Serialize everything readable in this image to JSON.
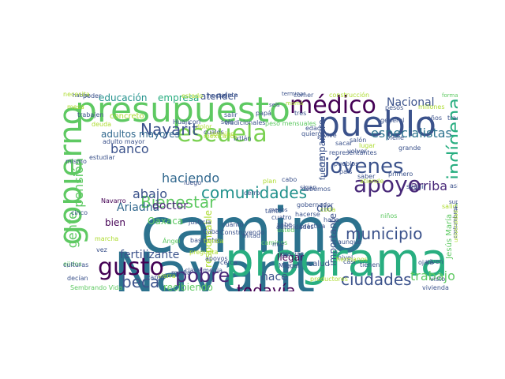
{
  "palette": {
    "dark_purple": "#440154",
    "indigo": "#3b528b",
    "teal": "#2c728e",
    "green": "#28ae80",
    "light_green": "#5ec962",
    "lime": "#addc30",
    "yellow": "#fde725"
  },
  "words": [
    {
      "text": "camino",
      "color": "#2c728e"
    },
    {
      "text": "Nayarit",
      "color": "#2c728e"
    },
    {
      "text": "programa",
      "color": "#28ae80"
    },
    {
      "text": "presupuesto",
      "color": "#5ec962"
    },
    {
      "text": "pueblo",
      "color": "#3b528b"
    },
    {
      "text": "escuela",
      "color": "#7ad151"
    },
    {
      "text": "médico",
      "color": "#440154"
    },
    {
      "text": "gobierno",
      "color": "#5ec962"
    },
    {
      "text": "gusto",
      "color": "#440154"
    },
    {
      "text": "apoyo",
      "color": "#482878"
    },
    {
      "text": "jóvenes",
      "color": "#3b528b"
    },
    {
      "text": "indígena",
      "color": "#28ae80"
    },
    {
      "text": "pobre",
      "color": "#482878"
    },
    {
      "text": "beca",
      "color": "#3b528b"
    },
    {
      "text": "municipio",
      "color": "#3b528b"
    },
    {
      "text": "ciudades",
      "color": "#3b528b"
    },
    {
      "text": "todavía",
      "color": "#440154"
    },
    {
      "text": "Bienestar",
      "color": "#5ec962"
    },
    {
      "text": "comunidades",
      "color": "#21918c"
    },
    {
      "text": "Nayarit",
      "color": "#3b528b"
    },
    {
      "text": "gente",
      "color": "#5ec962"
    },
    {
      "text": "pensión",
      "color": "#5ec962"
    },
    {
      "text": "especialistas",
      "color": "#2c728e"
    },
    {
      "text": "Nacional",
      "color": "#3b528b"
    },
    {
      "text": "arriba",
      "color": "#482878"
    },
    {
      "text": "trabajo",
      "color": "#5ec962"
    },
    {
      "text": "haciendo",
      "color": "#31688e"
    },
    {
      "text": "abajo",
      "color": "#3b528b"
    },
    {
      "text": "banco",
      "color": "#3b528b"
    },
    {
      "text": "Ariadna",
      "color": "#31688e"
    },
    {
      "text": "doctor",
      "color": "#482878"
    },
    {
      "text": "fertilizante",
      "color": "#3b528b"
    },
    {
      "text": "bien",
      "color": "#440154"
    },
    {
      "text": "dio",
      "color": "#3b528b"
    },
    {
      "text": "compañero",
      "color": "#3b528b"
    },
    {
      "text": "educación",
      "color": "#21918c"
    },
    {
      "text": "adultos mayores",
      "color": "#31688e"
    },
    {
      "text": "empresa",
      "color": "#28ae80"
    },
    {
      "text": "atender",
      "color": "#3b528b"
    },
    {
      "text": "importante",
      "color": "#3b528b"
    },
    {
      "text": "fuerte",
      "color": "#3b528b"
    },
    {
      "text": "Oaxaca",
      "color": "#5ec962"
    },
    {
      "text": "responsable",
      "color": "#addc30"
    },
    {
      "text": "recibiendo",
      "color": "#5ec962"
    },
    {
      "text": "Jesús María",
      "color": "#5ec962"
    },
    {
      "text": "salud",
      "color": "#3b528b"
    },
    {
      "text": "concreto",
      "color": "#addc30"
    },
    {
      "text": "adulto mayor",
      "color": "#3b528b"
    },
    {
      "text": "Navarro",
      "color": "#440154"
    },
    {
      "text": "justicia",
      "color": "#3b528b"
    },
    {
      "text": "cuánto",
      "color": "#3b528b"
    },
    {
      "text": "Construyendo",
      "color": "#3b528b"
    },
    {
      "text": "mitad",
      "color": "#3b528b"
    },
    {
      "text": "llegar",
      "color": "#440154"
    },
    {
      "text": "hace",
      "color": "#3b528b"
    },
    {
      "text": "clase media",
      "color": "#3b528b"
    },
    {
      "text": "sierra",
      "color": "#addc30"
    },
    {
      "text": "cargo",
      "color": "#3b528b"
    },
    {
      "text": "Sembrando Vida",
      "color": "#5ec962"
    },
    {
      "text": "vivienda",
      "color": "#3b528b"
    },
    {
      "text": "primero",
      "color": "#3b528b"
    },
    {
      "text": "seguir",
      "color": "#3b528b"
    },
    {
      "text": "grande",
      "color": "#3b528b"
    },
    {
      "text": "Huajicori",
      "color": "#3b528b"
    },
    {
      "text": "tradicionales",
      "color": "#3b528b"
    },
    {
      "text": "cinco",
      "color": "#3b528b"
    },
    {
      "text": "vez",
      "color": "#3b528b"
    },
    {
      "text": "ejidos",
      "color": "#5ec962"
    },
    {
      "text": "hablar",
      "color": "#3b528b"
    },
    {
      "text": "trabajen",
      "color": "#3b528b"
    },
    {
      "text": "millones",
      "color": "#addc30"
    },
    {
      "text": "tradiciones",
      "color": "#3b528b"
    },
    {
      "text": "formando",
      "color": "#5ec962"
    },
    {
      "text": "casi",
      "color": "#3b528b"
    },
    {
      "text": "nivel",
      "color": "#3b528b"
    },
    {
      "text": "aunque",
      "color": "#3b528b"
    },
    {
      "text": "Miguel",
      "color": "#3b528b"
    },
    {
      "text": "llega",
      "color": "#3b528b"
    },
    {
      "text": "años",
      "color": "#3b528b"
    },
    {
      "text": "seis",
      "color": "#3b528b"
    },
    {
      "text": "salida",
      "color": "#addc30"
    },
    {
      "text": "Ángel",
      "color": "#5ec962"
    },
    {
      "text": "costumbres",
      "color": "#3b528b"
    },
    {
      "text": "peso mensuales",
      "color": "#5ec962"
    },
    {
      "text": "dolor",
      "color": "#addc30"
    },
    {
      "text": "cuales",
      "color": "#3b528b"
    },
    {
      "text": "luego",
      "color": "#3b528b"
    },
    {
      "text": "mismo",
      "color": "#3b528b"
    },
    {
      "text": "sigan",
      "color": "#3b528b"
    },
    {
      "text": "haga",
      "color": "#3b528b"
    },
    {
      "text": "viene",
      "color": "#3b528b"
    },
    {
      "text": "saber",
      "color": "#3b528b"
    },
    {
      "text": "cerro",
      "color": "#3b528b"
    },
    {
      "text": "usted",
      "color": "#5ec962"
    },
    {
      "text": "tanto",
      "color": "#3b528b"
    },
    {
      "text": "menos",
      "color": "#3b528b"
    },
    {
      "text": "cabo",
      "color": "#3b528b"
    },
    {
      "text": "estudiar",
      "color": "#3b528b"
    },
    {
      "text": "deuda",
      "color": "#addc30"
    },
    {
      "text": "general",
      "color": "#3b528b"
    },
    {
      "text": "pesos",
      "color": "#3b528b"
    },
    {
      "text": "salón",
      "color": "#3b528b"
    },
    {
      "text": "coda",
      "color": "#addc30"
    },
    {
      "text": "vive",
      "color": "#3b528b"
    },
    {
      "text": "representantes",
      "color": "#3b528b"
    },
    {
      "text": "volver",
      "color": "#3b528b"
    },
    {
      "text": "sacar",
      "color": "#3b528b"
    },
    {
      "text": "hermanos",
      "color": "#addc30"
    },
    {
      "text": "comer",
      "color": "#3b528b"
    },
    {
      "text": "término",
      "color": "#addc30"
    },
    {
      "text": "cuenta",
      "color": "#3b528b"
    },
    {
      "text": "terminar",
      "color": "#3b528b"
    },
    {
      "text": "construcción",
      "color": "#addc30"
    },
    {
      "text": "edad",
      "color": "#3b528b"
    },
    {
      "text": "mamá",
      "color": "#addc30"
    },
    {
      "text": "quiero",
      "color": "#3b528b"
    },
    {
      "text": "tres",
      "color": "#3b528b"
    },
    {
      "text": "visto",
      "color": "#3b528b"
    },
    {
      "text": "universidad",
      "color": "#addc30"
    },
    {
      "text": "buscar",
      "color": "#3b528b"
    },
    {
      "text": "mayores",
      "color": "#5ec962"
    },
    {
      "text": "superior",
      "color": "#3b528b"
    },
    {
      "text": "asi",
      "color": "#3b528b"
    },
    {
      "text": "tienen",
      "color": "#3b528b"
    },
    {
      "text": "poder",
      "color": "#3b528b"
    },
    {
      "text": "estado",
      "color": "#addc30"
    },
    {
      "text": "hecho",
      "color": "#3b528b"
    },
    {
      "text": "bastante",
      "color": "#3b528b"
    },
    {
      "text": "Cuba",
      "color": "#3b528b"
    },
    {
      "text": "mesa",
      "color": "#addc30"
    },
    {
      "text": "marcha",
      "color": "#addc30"
    },
    {
      "text": "Ixtlán",
      "color": "#3b528b"
    },
    {
      "text": "mexicanos",
      "color": "#addc30"
    },
    {
      "text": "culturas",
      "color": "#3b528b"
    },
    {
      "text": "media",
      "color": "#3b528b"
    },
    {
      "text": "apoyos",
      "color": "#3b528b"
    },
    {
      "text": "caminos",
      "color": "#5ec962"
    },
    {
      "text": "tienda",
      "color": "#addc30"
    },
    {
      "text": "cerca",
      "color": "#3b528b"
    },
    {
      "text": "pregunta",
      "color": "#addc30"
    },
    {
      "text": "cuatro",
      "color": "#3b528b"
    },
    {
      "text": "gracias",
      "color": "#3b528b"
    },
    {
      "text": "lugar",
      "color": "#addc30"
    },
    {
      "text": "niños",
      "color": "#5ec962"
    },
    {
      "text": "decían",
      "color": "#3b528b"
    },
    {
      "text": "autoridades",
      "color": "#3b528b"
    },
    {
      "text": "práctica",
      "color": "#3b528b"
    },
    {
      "text": "gobernador",
      "color": "#3b528b"
    },
    {
      "text": "debemos",
      "color": "#3b528b"
    },
    {
      "text": "productores",
      "color": "#addc30"
    },
    {
      "text": "ojalá",
      "color": "#3b528b"
    },
    {
      "text": "solo",
      "color": "#3b528b"
    },
    {
      "text": "mar",
      "color": "#3b528b"
    },
    {
      "text": "plan",
      "color": "#addc30"
    },
    {
      "text": "papá",
      "color": "#3b528b"
    },
    {
      "text": "salir",
      "color": "#3b528b"
    },
    {
      "text": "sabe",
      "color": "#3b528b"
    },
    {
      "text": "pueblos",
      "color": "#3b528b"
    },
    {
      "text": "país",
      "color": "#3b528b"
    },
    {
      "text": "hacerse",
      "color": "#3b528b"
    },
    {
      "text": "atiende",
      "color": "#addc30"
    },
    {
      "text": "viven",
      "color": "#3b528b"
    },
    {
      "text": "necesita",
      "color": "#addc30"
    }
  ]
}
